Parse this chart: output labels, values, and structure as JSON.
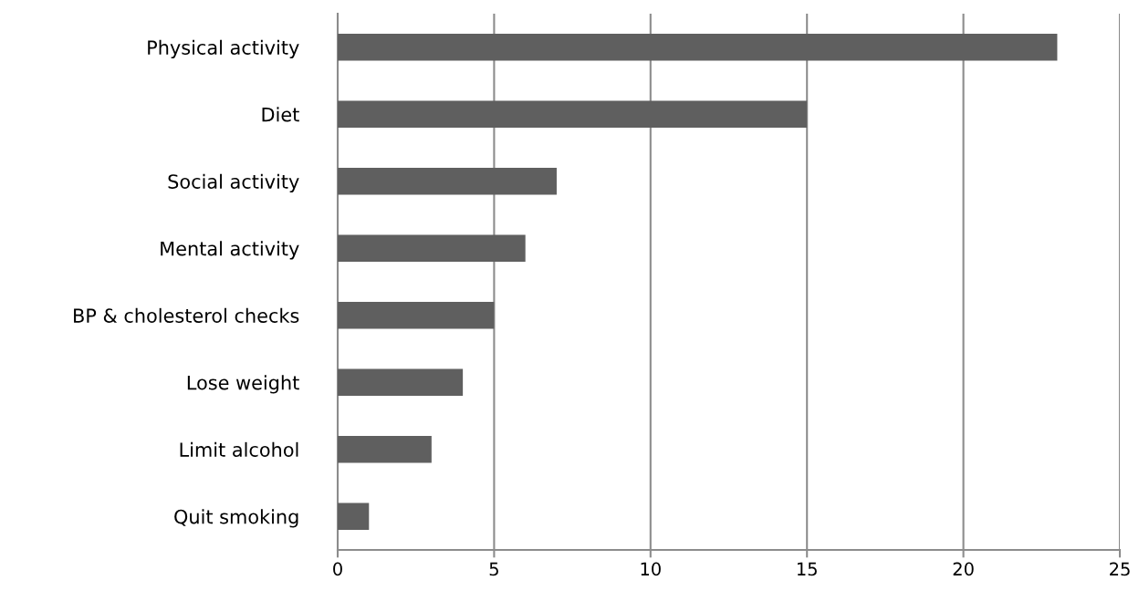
{
  "chart_data": {
    "type": "bar",
    "orientation": "horizontal",
    "categories": [
      "Physical activity",
      "Diet",
      "Social activity",
      "Mental activity",
      "BP & cholesterol checks",
      "Lose weight",
      "Limit alcohol",
      "Quit smoking"
    ],
    "values": [
      23,
      15,
      7,
      6,
      5,
      4,
      3,
      1
    ],
    "color": "#5f5f5f",
    "xlim": [
      0,
      25
    ],
    "xticks": [
      0,
      5,
      10,
      15,
      20,
      25
    ],
    "grid": "x"
  }
}
